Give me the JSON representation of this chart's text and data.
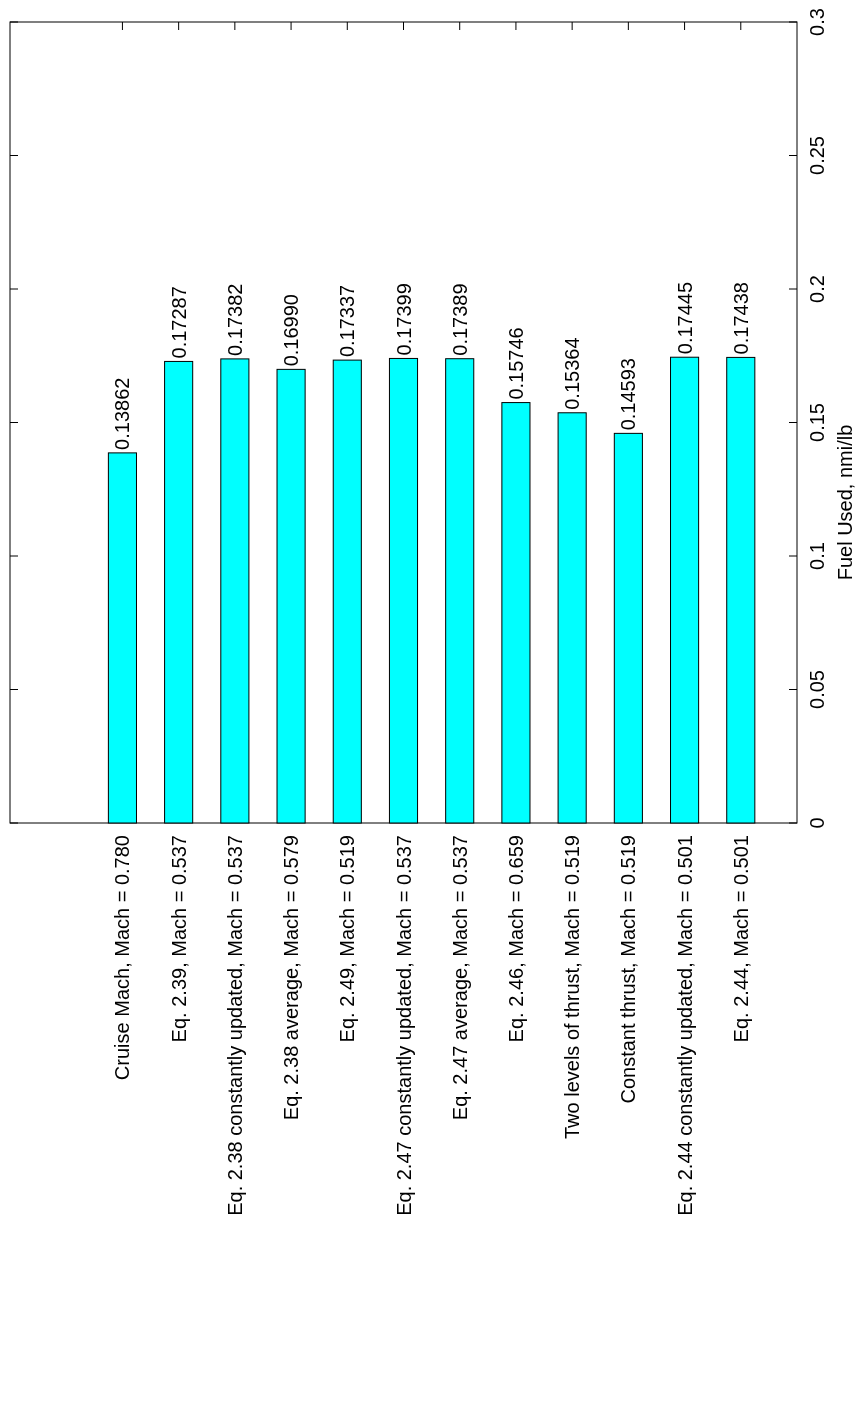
{
  "chart_data": {
    "type": "bar",
    "ylabel": "Fuel Used, nmi/lb",
    "categories": [
      "Cruise Mach, Mach = 0.780",
      "Eq. 2.39, Mach = 0.537",
      "Eq. 2.38 constantly updated, Mach = 0.537",
      "Eq. 2.38 average, Mach = 0.579",
      "Eq. 2.49, Mach = 0.519",
      "Eq. 2.47 constantly updated, Mach = 0.537",
      "Eq. 2.47 average, Mach = 0.537",
      "Eq. 2.46, Mach = 0.659",
      "Two levels of thrust, Mach = 0.519",
      "Constant thrust, Mach = 0.519",
      "Eq. 2.44 constantly updated, Mach = 0.501",
      "Eq. 2.44, Mach = 0.501"
    ],
    "values": [
      0.13862,
      0.17287,
      0.17382,
      0.1699,
      0.17337,
      0.17399,
      0.17389,
      0.15746,
      0.15364,
      0.14593,
      0.17445,
      0.17438
    ],
    "value_labels": [
      "0.13862",
      "0.17287",
      "0.17382",
      "0.16990",
      "0.17337",
      "0.17399",
      "0.17389",
      "0.15746",
      "0.15364",
      "0.14593",
      "0.17445",
      "0.17438"
    ],
    "color": "#00ffff",
    "ylim": [
      0,
      0.3
    ],
    "yticks": [
      0,
      0.05,
      0.1,
      0.15,
      0.2,
      0.25,
      0.3
    ]
  }
}
